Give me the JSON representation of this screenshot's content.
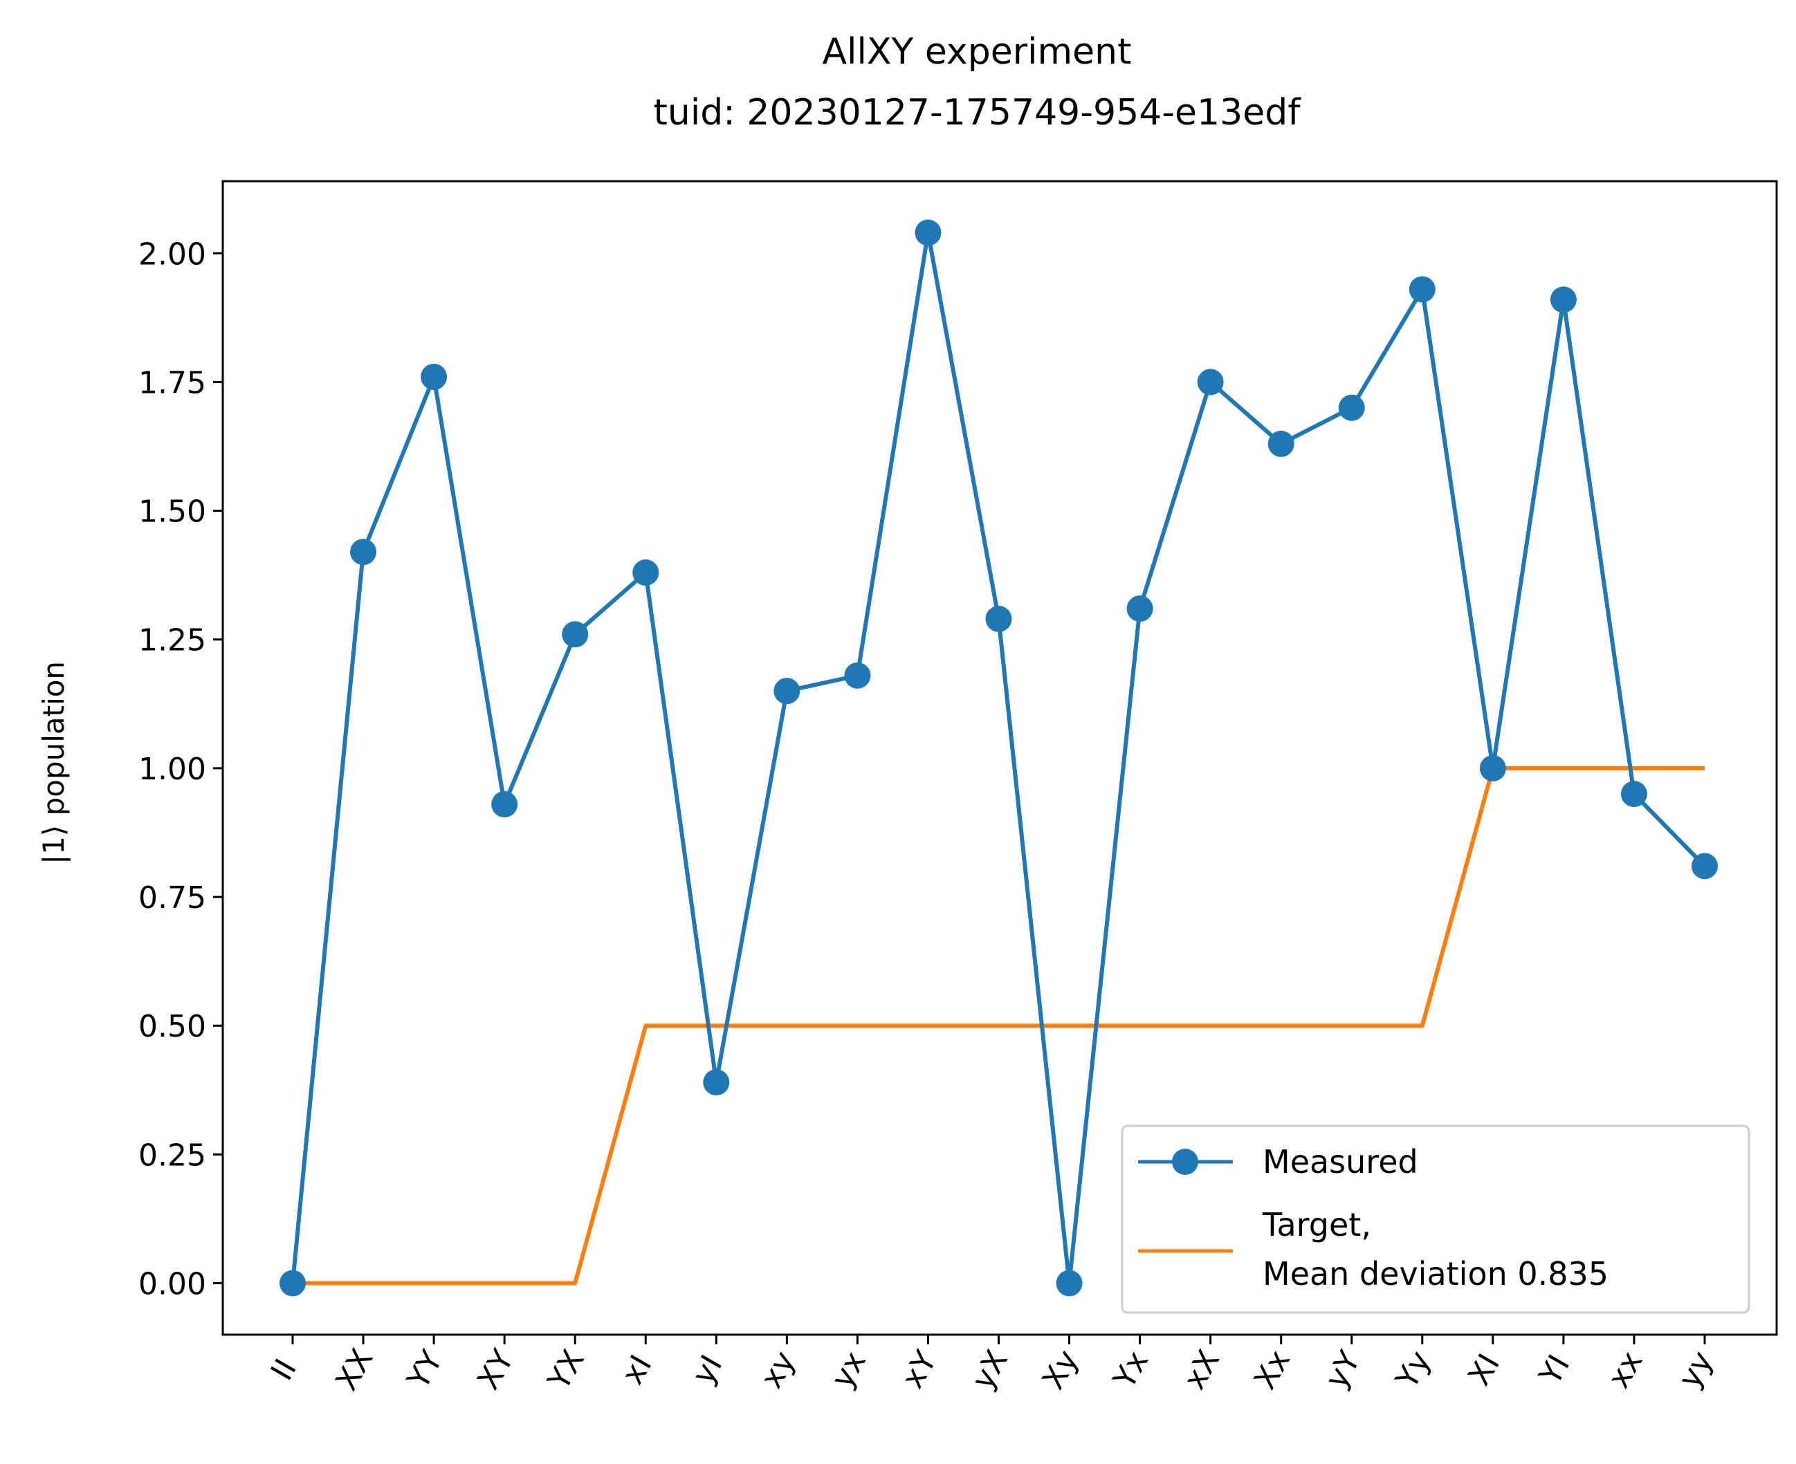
{
  "chart_data": {
    "type": "line",
    "title": "AllXY experiment",
    "subtitle": "tuid: 20230127-175749-954-e13edf",
    "xlabel": "",
    "ylabel": "|1⟩ population",
    "categories": [
      "II",
      "XX",
      "YY",
      "XY",
      "YX",
      "xI",
      "yI",
      "xy",
      "yx",
      "xY",
      "yX",
      "Xy",
      "Yx",
      "xX",
      "Xx",
      "yY",
      "Yy",
      "XI",
      "YI",
      "xx",
      "yy"
    ],
    "ylim": [
      -0.1,
      2.14
    ],
    "yticks": [
      "0.00",
      "0.25",
      "0.50",
      "0.75",
      "1.00",
      "1.25",
      "1.50",
      "1.75",
      "2.00"
    ],
    "grid": false,
    "legend_position": "lower-right",
    "series": [
      {
        "name": "Measured",
        "color": "#1f77b4",
        "marker": "circle",
        "values": [
          0.0,
          1.42,
          1.76,
          0.93,
          1.26,
          1.38,
          0.39,
          1.15,
          1.18,
          2.04,
          1.29,
          0.0,
          1.31,
          1.75,
          1.63,
          1.7,
          1.93,
          1.0,
          1.91,
          0.95,
          0.81
        ]
      },
      {
        "name": "Target,\nMean deviation 0.835",
        "color": "#ff7f0e",
        "marker": "none",
        "values": [
          0,
          0,
          0,
          0,
          0,
          0.5,
          0.5,
          0.5,
          0.5,
          0.5,
          0.5,
          0.5,
          0.5,
          0.5,
          0.5,
          0.5,
          0.5,
          1,
          1,
          1,
          1
        ]
      }
    ],
    "legend": {
      "measured_label": "Measured",
      "target_label_line1": "Target,",
      "target_label_line2": "Mean deviation 0.835"
    }
  }
}
